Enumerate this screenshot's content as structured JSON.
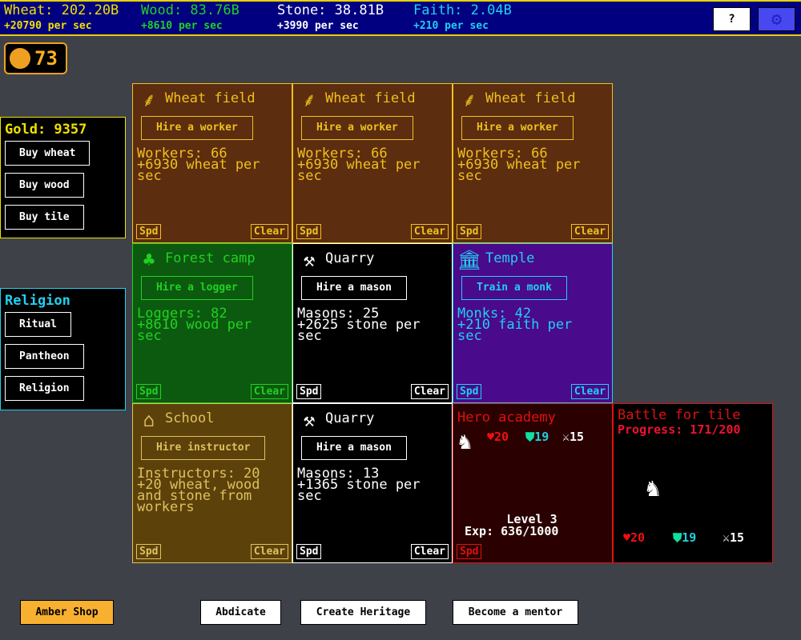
{
  "resources": [
    {
      "name": "Wheat: 202.20B",
      "rate": "+20790 per sec",
      "color": "#f0e000"
    },
    {
      "name": "Wood: 83.76B",
      "rate": "+8610 per sec",
      "color": "#22d022"
    },
    {
      "name": "Stone: 38.81B",
      "rate": "+3990 per sec",
      "color": "#ffffff"
    },
    {
      "name": "Faith: 2.04B",
      "rate": "+210 per sec",
      "color": "#20d0f0"
    }
  ],
  "top_buttons": {
    "help": "?",
    "settings_icon": "gear-icon"
  },
  "amber": {
    "count": "73",
    "icon": "amber-coin-icon"
  },
  "gold_panel": {
    "title": "Gold: 9357",
    "buttons": [
      "Buy wheat",
      "Buy wood",
      "Buy tile"
    ]
  },
  "religion_panel": {
    "title": "Religion",
    "buttons": [
      "Ritual",
      "Pantheon",
      "Religion"
    ]
  },
  "tiles": [
    {
      "name": "Wheat field",
      "icon": "wheat-icon",
      "button": "Hire a worker",
      "info": "Workers: 66\n+6930 wheat per\nsec",
      "spd": "Spd",
      "clear": "Clear",
      "bg": "#5c2d0e",
      "fg": "#f0c020",
      "border": "#f0c020"
    },
    {
      "name": "Wheat field",
      "icon": "wheat-icon",
      "button": "Hire a worker",
      "info": "Workers: 66\n+6930 wheat per\nsec",
      "spd": "Spd",
      "clear": "Clear",
      "bg": "#5c2d0e",
      "fg": "#f0c020",
      "border": "#f0c020"
    },
    {
      "name": "Wheat field",
      "icon": "wheat-icon",
      "button": "Hire a worker",
      "info": "Workers: 66\n+6930 wheat per\nsec",
      "spd": "Spd",
      "clear": "Clear",
      "bg": "#5c2d0e",
      "fg": "#f0c020",
      "border": "#f0c020"
    },
    {
      "name": "Forest camp",
      "icon": "tree-icon",
      "button": "Hire a logger",
      "info": "Loggers: 82\n+8610 wood per\nsec",
      "spd": "Spd",
      "clear": "Clear",
      "bg": "#0c5a10",
      "fg": "#22d022",
      "border": "#22d022"
    },
    {
      "name": "Quarry",
      "icon": "pickaxe-icon",
      "button": "Hire a mason",
      "info": "Masons: 25\n+2625 stone per\nsec",
      "spd": "Spd",
      "clear": "Clear",
      "bg": "#000000",
      "fg": "#ffffff",
      "border": "#ffffff"
    },
    {
      "name": "Temple",
      "icon": "temple-icon",
      "button": "Train a monk",
      "info": "Monks: 42\n+210 faith per\nsec",
      "spd": "Spd",
      "clear": "Clear",
      "bg": "#4a0a8c",
      "fg": "#20d0f0",
      "border": "#20d0f0"
    },
    {
      "name": "School",
      "icon": "school-icon",
      "button": "Hire instructor",
      "info": "Instructors: 20\n+20 wheat, wood\nand stone from\nworkers",
      "spd": "Spd",
      "clear": "Clear",
      "bg": "#5c420a",
      "fg": "#e0c060",
      "border": "#e0c060"
    },
    {
      "name": "Quarry",
      "icon": "pickaxe-icon",
      "button": "Hire a mason",
      "info": "Masons: 13\n+1365 stone per\nsec",
      "spd": "Spd",
      "clear": "Clear",
      "bg": "#000000",
      "fg": "#ffffff",
      "border": "#ffffff"
    }
  ],
  "hero": {
    "title": "Hero academy",
    "hp": "20",
    "armor": "19",
    "attack": "15",
    "level": "Level 3",
    "exp": "Exp: 636/1000",
    "spd": "Spd"
  },
  "battle": {
    "title": "Battle for tile",
    "progress": "Progress: 171/200",
    "hp": "20",
    "armor": "19",
    "attack": "15"
  },
  "bottom_buttons": [
    "Amber Shop",
    "Abdicate",
    "Create Heritage",
    "Become a mentor"
  ]
}
